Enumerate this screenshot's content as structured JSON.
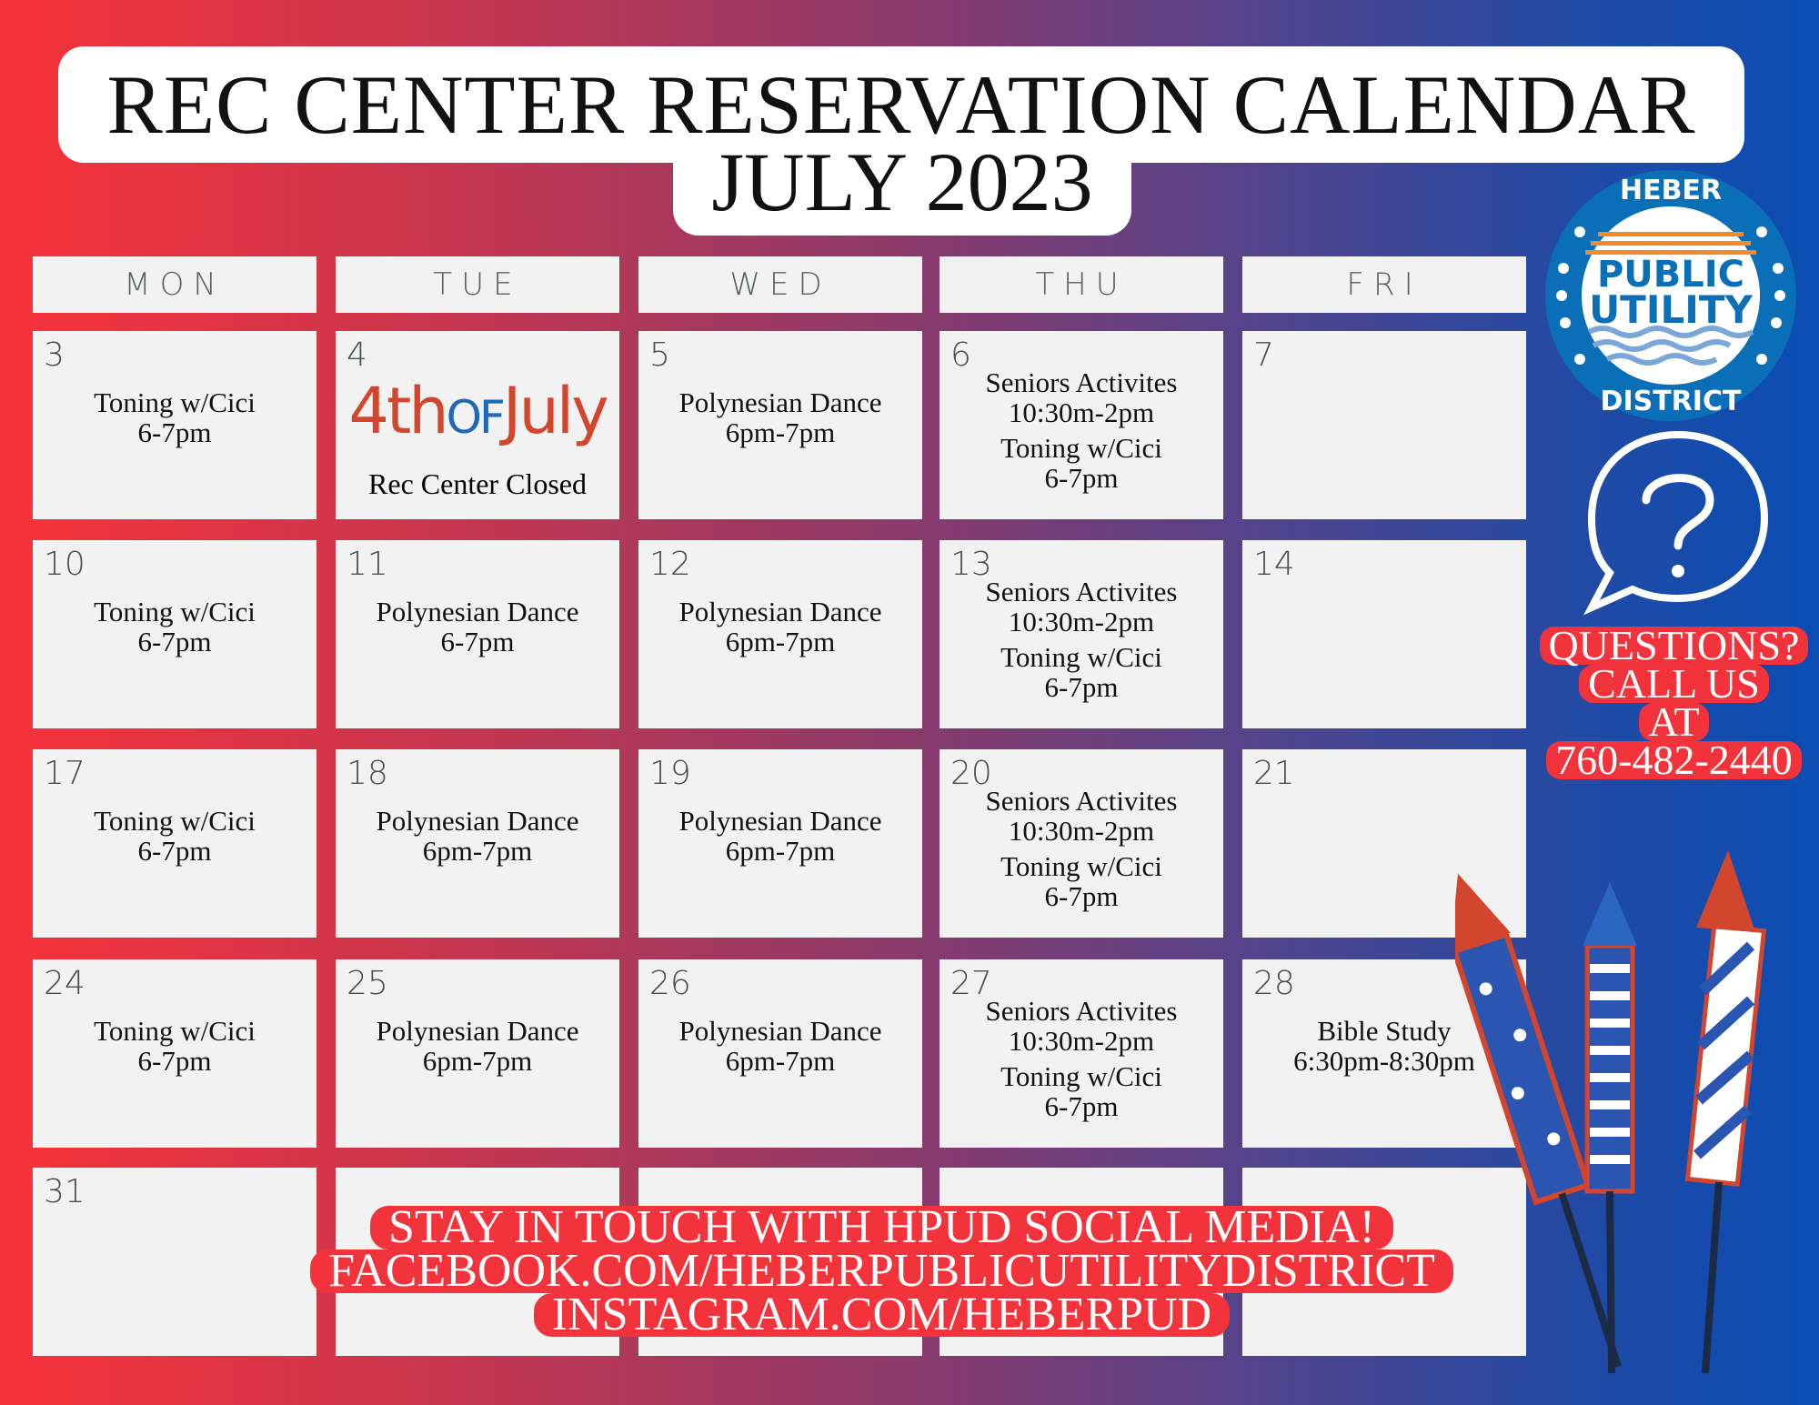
{
  "title": {
    "line1": "REC CENTER RESERVATION CALENDAR",
    "line2": "JULY 2023"
  },
  "weekdays": [
    "MON",
    "TUE",
    "WED",
    "THU",
    "FRI"
  ],
  "holiday": {
    "logo_text": "4th of July",
    "logo_parts": [
      "4th",
      "OF",
      "July"
    ],
    "note": "Rec Center Closed"
  },
  "weeks": [
    [
      {
        "day": "3",
        "events": [
          [
            "Toning w/Cici",
            "6-7pm"
          ]
        ]
      },
      {
        "day": "4",
        "holiday": true
      },
      {
        "day": "5",
        "events": [
          [
            "Polynesian Dance",
            "6pm-7pm"
          ]
        ]
      },
      {
        "day": "6",
        "events": [
          [
            "Seniors Activites",
            "10:30m-2pm"
          ],
          [
            "Toning w/Cici",
            "6-7pm"
          ]
        ]
      },
      {
        "day": "7",
        "events": []
      }
    ],
    [
      {
        "day": "10",
        "events": [
          [
            "Toning w/Cici",
            "6-7pm"
          ]
        ]
      },
      {
        "day": "11",
        "events": [
          [
            "Polynesian Dance",
            "6-7pm"
          ]
        ]
      },
      {
        "day": "12",
        "events": [
          [
            "Polynesian Dance",
            "6pm-7pm"
          ]
        ]
      },
      {
        "day": "13",
        "events": [
          [
            "Seniors Activites",
            "10:30m-2pm"
          ],
          [
            "Toning w/Cici",
            "6-7pm"
          ]
        ]
      },
      {
        "day": "14",
        "events": []
      }
    ],
    [
      {
        "day": "17",
        "events": [
          [
            "Toning w/Cici",
            "6-7pm"
          ]
        ]
      },
      {
        "day": "18",
        "events": [
          [
            "Polynesian Dance",
            "6pm-7pm"
          ]
        ]
      },
      {
        "day": "19",
        "events": [
          [
            "Polynesian Dance",
            "6pm-7pm"
          ]
        ]
      },
      {
        "day": "20",
        "events": [
          [
            "Seniors Activites",
            "10:30m-2pm"
          ],
          [
            "Toning w/Cici",
            "6-7pm"
          ]
        ]
      },
      {
        "day": "21",
        "events": []
      }
    ],
    [
      {
        "day": "24",
        "events": [
          [
            "Toning w/Cici",
            "6-7pm"
          ]
        ]
      },
      {
        "day": "25",
        "events": [
          [
            "Polynesian Dance",
            "6pm-7pm"
          ]
        ]
      },
      {
        "day": "26",
        "events": [
          [
            "Polynesian Dance",
            "6pm-7pm"
          ]
        ]
      },
      {
        "day": "27",
        "events": [
          [
            "Seniors Activites",
            "10:30m-2pm"
          ],
          [
            "Toning w/Cici",
            "6-7pm"
          ]
        ]
      },
      {
        "day": "28",
        "events": [
          [
            "Bible Study",
            "6:30pm-8:30pm"
          ]
        ]
      }
    ],
    [
      {
        "day": "31",
        "events": []
      },
      {
        "day": "",
        "events": []
      },
      {
        "day": "",
        "events": []
      },
      {
        "day": "",
        "events": []
      },
      {
        "day": "",
        "events": []
      }
    ]
  ],
  "logo": {
    "top": "HEBER",
    "middle1": "PUBLIC",
    "middle2": "UTILITY",
    "bottom": "DISTRICT"
  },
  "questions": {
    "lines": [
      "QUESTIONS?",
      "CALL US",
      "AT",
      "760-482-2440"
    ]
  },
  "social": {
    "lines": [
      "STAY IN TOUCH WITH HPUD SOCIAL MEDIA!",
      "FACEBOOK.COM/HEBERPUBLICUTILITYDISTRICT",
      "INSTAGRAM.COM/HEBERPUD"
    ]
  },
  "colors": {
    "red": "#f3333b",
    "blue": "#0a4db3",
    "cell": "#f2f2f2",
    "logo_blue": "#0b6fb8",
    "logo_orange": "#f08a2c"
  }
}
